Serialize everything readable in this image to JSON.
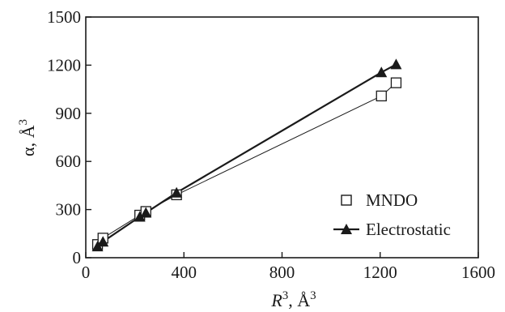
{
  "chart_data": {
    "type": "line",
    "title": "",
    "xlabel": {
      "main": "R",
      "sup": "3",
      "rest": ", Å",
      "unit_sup": "3"
    },
    "ylabel": {
      "main": "α, Å",
      "sup": "3"
    },
    "xlim": [
      0,
      1600
    ],
    "ylim": [
      0,
      1500
    ],
    "x_ticks": [
      0,
      400,
      800,
      1200,
      1600
    ],
    "y_ticks": [
      0,
      300,
      600,
      900,
      1200,
      1500
    ],
    "x_tick_labels": [
      "0",
      "400",
      "800",
      "1200",
      "1600"
    ],
    "y_tick_labels": [
      "0",
      "300",
      "600",
      "900",
      "1200",
      "1500"
    ],
    "grid": false,
    "legend_position": "bottom-right",
    "series": [
      {
        "name": "MNDO",
        "marker": "open-square",
        "color": "#1a1a1a",
        "x": [
          48,
          70,
          220,
          245,
          370,
          1205,
          1265
        ],
        "y": [
          82,
          122,
          265,
          288,
          392,
          1008,
          1090
        ]
      },
      {
        "name": "Electrostatic",
        "marker": "filled-triangle",
        "color": "#1a1a1a",
        "x": [
          48,
          70,
          220,
          245,
          370,
          1205,
          1265
        ],
        "y": [
          70,
          100,
          255,
          280,
          405,
          1155,
          1205
        ]
      }
    ]
  }
}
